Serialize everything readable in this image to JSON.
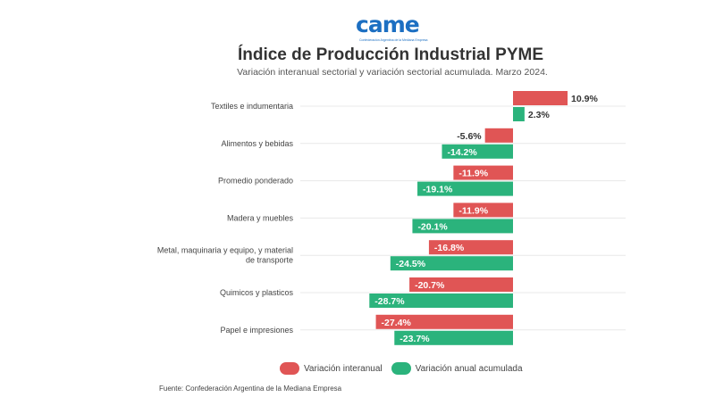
{
  "logo": {
    "wordmark": "came",
    "tagline": "Confederación Argentina de la Mediana Empresa"
  },
  "colors": {
    "interanual": "#e05555",
    "acumulada": "#2bb37c"
  },
  "chart_data": {
    "type": "bar",
    "orientation": "horizontal",
    "title": "Índice de Producción Industrial PYME",
    "subtitle": "Variación interanual sectorial y variación sectorial acumulada. Marzo 2024.",
    "categories": [
      "Textiles e indumentaria",
      "Alimentos y bebidas",
      "Promedio ponderado",
      "Madera y muebles",
      "Metal, maquinaria y equipo, y material de transporte",
      "Quimicos y plasticos",
      "Papel e impresiones"
    ],
    "category_lines": [
      [
        "Textiles e indumentaria"
      ],
      [
        "Alimentos y bebidas"
      ],
      [
        "Promedio ponderado"
      ],
      [
        "Madera y muebles"
      ],
      [
        "Metal, maquinaria y equipo, y material",
        "de transporte"
      ],
      [
        "Quimicos y plasticos"
      ],
      [
        "Papel e impresiones"
      ]
    ],
    "series": [
      {
        "name": "Variación interanual",
        "values": [
          10.9,
          -5.6,
          -11.9,
          -11.9,
          -16.8,
          -20.7,
          -27.4
        ],
        "labels": [
          "10.9%",
          "-5.6%",
          "-11.9%",
          "-11.9%",
          "-16.8%",
          "-20.7%",
          "-27.4%"
        ]
      },
      {
        "name": "Variación anual acumulada",
        "values": [
          2.3,
          -14.2,
          -19.1,
          -20.1,
          -24.5,
          -28.7,
          -23.7
        ],
        "labels": [
          "2.3%",
          "-14.2%",
          "-19.1%",
          "-20.1%",
          "-24.5%",
          "-28.7%",
          "-23.7%"
        ]
      }
    ],
    "unit": "%",
    "legend_position": "bottom"
  },
  "source": "Fuente: Confederación Argentina de la Mediana Empresa"
}
